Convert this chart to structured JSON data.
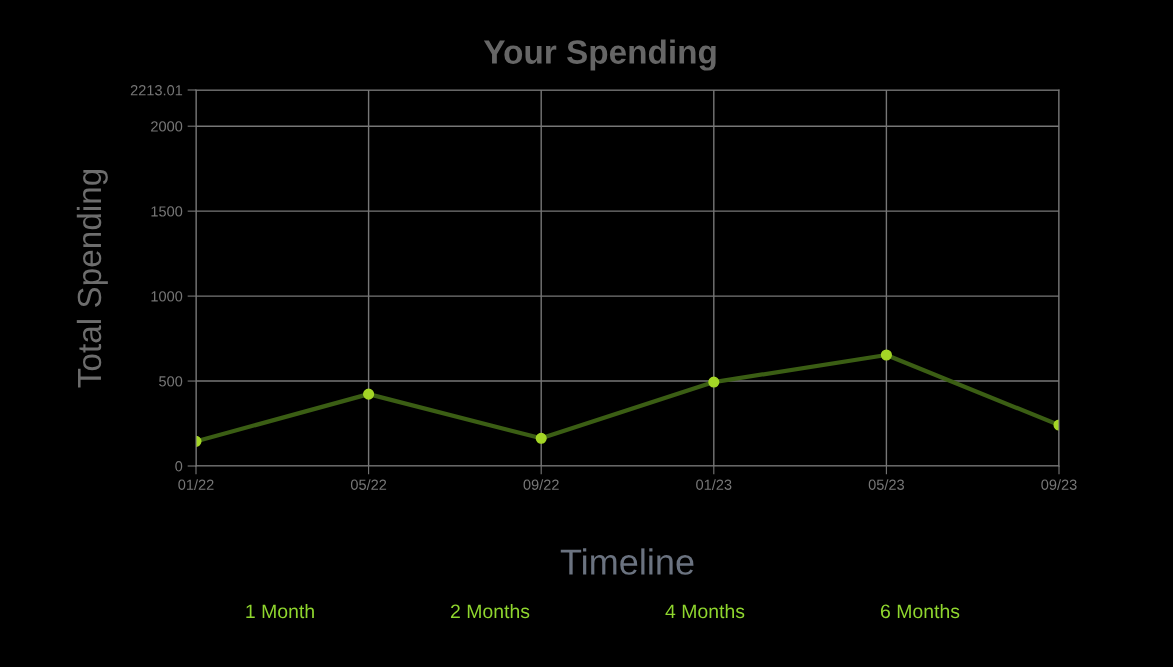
{
  "chart_data": {
    "type": "line",
    "title": "Your Spending",
    "xlabel": "Timeline",
    "ylabel": "Total Spending",
    "categories": [
      "01/22",
      "05/22",
      "09/22",
      "01/23",
      "05/23",
      "09/23"
    ],
    "series": [
      {
        "color": "#3b5e14",
        "values": [
          145,
          423,
          163,
          494,
          653,
          241
        ]
      }
    ],
    "marker": "circle",
    "line_style": "solid",
    "ylim": [
      0,
      2213.01
    ],
    "yticks": [
      0,
      500,
      1000,
      1500,
      2000,
      2213.01
    ],
    "grid": true,
    "legend": false,
    "annotations": [
      "1 Month",
      "2 Months",
      "4 Months",
      "6 Months"
    ]
  }
}
